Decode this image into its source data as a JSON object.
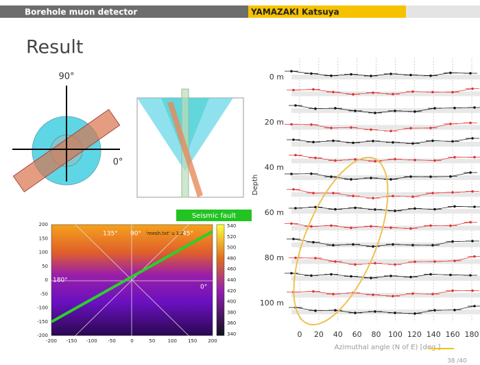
{
  "header": {
    "title": "Borehole muon detector",
    "author": "YAMAZAKI Katsuya"
  },
  "slide_title": "Result",
  "diagram": {
    "angle_top": "90°",
    "angle_right": "0°"
  },
  "heatmap": {
    "legend_text": "'mesh.txt' u 1:2",
    "angle_labels": [
      "135°",
      "90°",
      "45°",
      "180°",
      "0°"
    ],
    "xticks": [
      -200,
      -150,
      -100,
      -50,
      0,
      50,
      100,
      150,
      200
    ],
    "yticks": [
      200,
      150,
      100,
      50,
      0,
      -50,
      -100,
      -150,
      -200
    ],
    "colorbar_ticks": [
      540,
      520,
      500,
      480,
      460,
      440,
      420,
      400,
      380,
      360,
      340
    ],
    "fault_label": "Seismic fault"
  },
  "depth_chart": {
    "depth_labels": [
      "0 m",
      "20 m",
      "40 m",
      "60 m",
      "80 m",
      "100 m"
    ],
    "ylabel": "Depth",
    "xticks": [
      0,
      20,
      40,
      60,
      80,
      100,
      120,
      140,
      160,
      180
    ],
    "xlabel": "Azimuthal angle (N of E) [deg.]"
  },
  "page_number": "38 /40"
}
